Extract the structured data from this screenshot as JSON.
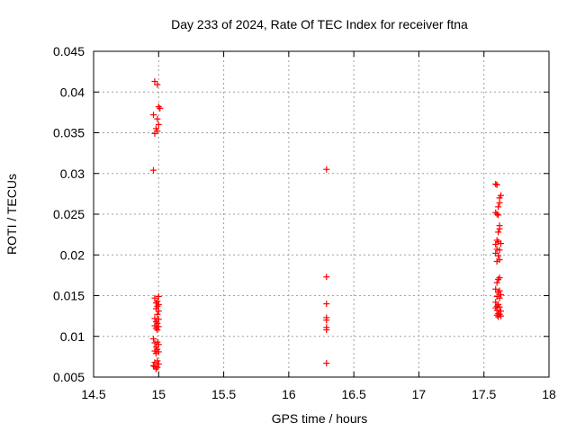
{
  "chart_data": {
    "type": "scatter",
    "title": "Day 233 of 2024, Rate Of TEC Index for receiver ftna",
    "xlabel": "GPS time / hours",
    "ylabel": "ROTI / TECUs",
    "xlim": [
      14.5,
      18
    ],
    "ylim": [
      0.005,
      0.045
    ],
    "xticks": [
      14.5,
      15,
      15.5,
      16,
      16.5,
      17,
      17.5,
      18
    ],
    "xtick_labels": [
      "14.5",
      "15",
      "15.5",
      "16",
      "16.5",
      "17",
      "17.5",
      "18"
    ],
    "yticks": [
      0.005,
      0.01,
      0.015,
      0.02,
      0.025,
      0.03,
      0.035,
      0.04,
      0.045
    ],
    "ytick_labels": [
      "0.005",
      "0.01",
      "0.015",
      "0.02",
      "0.025",
      "0.03",
      "0.035",
      "0.04",
      "0.045"
    ],
    "grid": true,
    "marker": "+",
    "color": "#ff0000",
    "series": [
      {
        "name": "ROTI",
        "points": [
          [
            14.97,
            0.0413
          ],
          [
            14.99,
            0.0409
          ],
          [
            15.0,
            0.0382
          ],
          [
            15.01,
            0.038
          ],
          [
            14.96,
            0.0372
          ],
          [
            14.99,
            0.0367
          ],
          [
            15.0,
            0.036
          ],
          [
            14.98,
            0.0355
          ],
          [
            14.99,
            0.0352
          ],
          [
            14.97,
            0.0349
          ],
          [
            14.96,
            0.0304
          ],
          [
            14.97,
            0.0147
          ],
          [
            15.0,
            0.0149
          ],
          [
            14.99,
            0.0143
          ],
          [
            14.98,
            0.0141
          ],
          [
            15.0,
            0.0139
          ],
          [
            14.99,
            0.0137
          ],
          [
            14.98,
            0.0134
          ],
          [
            15.0,
            0.0131
          ],
          [
            14.99,
            0.0127
          ],
          [
            14.97,
            0.0122
          ],
          [
            15.0,
            0.0121
          ],
          [
            14.98,
            0.0118
          ],
          [
            14.99,
            0.0116
          ],
          [
            14.97,
            0.0113
          ],
          [
            15.0,
            0.0112
          ],
          [
            14.98,
            0.011
          ],
          [
            14.99,
            0.0108
          ],
          [
            14.96,
            0.0097
          ],
          [
            14.99,
            0.0093
          ],
          [
            14.97,
            0.0092
          ],
          [
            15.0,
            0.009
          ],
          [
            14.98,
            0.0087
          ],
          [
            14.99,
            0.0084
          ],
          [
            14.97,
            0.0082
          ],
          [
            15.0,
            0.0081
          ],
          [
            14.98,
            0.0079
          ],
          [
            14.99,
            0.007
          ],
          [
            14.97,
            0.0068
          ],
          [
            15.0,
            0.0066
          ],
          [
            14.96,
            0.0064
          ],
          [
            14.99,
            0.0062
          ],
          [
            14.98,
            0.006
          ],
          [
            14.97,
            0.0063
          ],
          [
            16.29,
            0.0305
          ],
          [
            16.29,
            0.0173
          ],
          [
            16.29,
            0.014
          ],
          [
            16.29,
            0.0123
          ],
          [
            16.29,
            0.012
          ],
          [
            16.29,
            0.0111
          ],
          [
            16.29,
            0.0108
          ],
          [
            16.29,
            0.0067
          ],
          [
            17.59,
            0.0287
          ],
          [
            17.6,
            0.0286
          ],
          [
            17.63,
            0.0273
          ],
          [
            17.62,
            0.027
          ],
          [
            17.62,
            0.0264
          ],
          [
            17.61,
            0.0259
          ],
          [
            17.59,
            0.0252
          ],
          [
            17.6,
            0.025
          ],
          [
            17.61,
            0.0249
          ],
          [
            17.62,
            0.0236
          ],
          [
            17.62,
            0.0232
          ],
          [
            17.61,
            0.0228
          ],
          [
            17.6,
            0.0218
          ],
          [
            17.61,
            0.0216
          ],
          [
            17.59,
            0.0213
          ],
          [
            17.63,
            0.0214
          ],
          [
            17.6,
            0.0207
          ],
          [
            17.62,
            0.0206
          ],
          [
            17.59,
            0.0202
          ],
          [
            17.61,
            0.0199
          ],
          [
            17.62,
            0.0194
          ],
          [
            17.6,
            0.0192
          ],
          [
            17.62,
            0.0172
          ],
          [
            17.61,
            0.017
          ],
          [
            17.6,
            0.0166
          ],
          [
            17.59,
            0.0158
          ],
          [
            17.62,
            0.0156
          ],
          [
            17.61,
            0.0154
          ],
          [
            17.63,
            0.0151
          ],
          [
            17.6,
            0.0149
          ],
          [
            17.62,
            0.0147
          ],
          [
            17.59,
            0.0142
          ],
          [
            17.61,
            0.0139
          ],
          [
            17.6,
            0.0137
          ],
          [
            17.62,
            0.0136
          ],
          [
            17.59,
            0.0135
          ],
          [
            17.6,
            0.0132
          ],
          [
            17.63,
            0.0131
          ],
          [
            17.61,
            0.0128
          ],
          [
            17.62,
            0.0127
          ],
          [
            17.6,
            0.0126
          ],
          [
            17.61,
            0.0124
          ],
          [
            17.63,
            0.0125
          ]
        ]
      }
    ]
  }
}
